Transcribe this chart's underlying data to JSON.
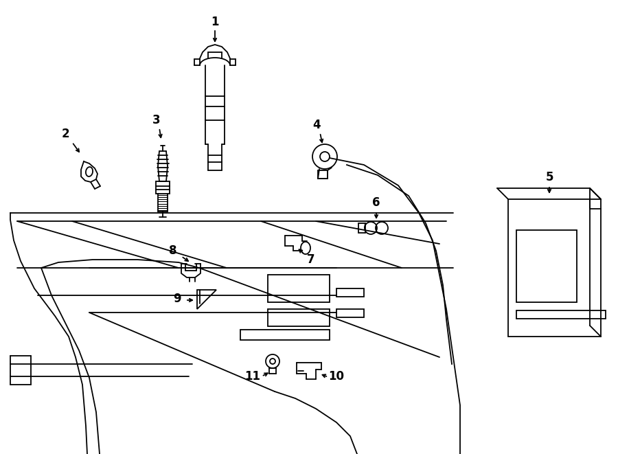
{
  "bg_color": "#ffffff",
  "line_color": "#000000",
  "lw": 1.3
}
